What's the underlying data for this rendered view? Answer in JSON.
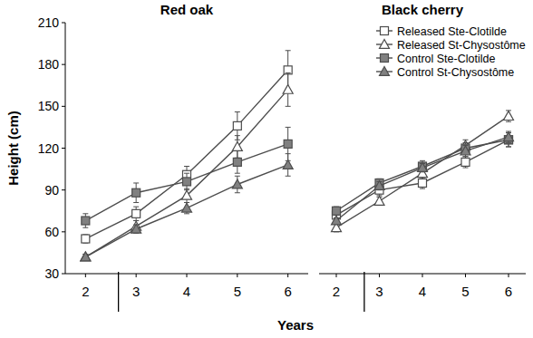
{
  "chart_data": [
    {
      "type": "line",
      "title": "Red oak",
      "ylabel": "Height (cm)",
      "xlabel": "Years",
      "x": [
        2,
        3,
        4,
        5,
        6
      ],
      "xlim": [
        1.6,
        6.4
      ],
      "xticks": [
        2,
        3,
        4,
        5,
        6
      ],
      "ylim": [
        30,
        210
      ],
      "yticks": [
        30,
        60,
        90,
        120,
        150,
        180,
        210
      ],
      "grid": false,
      "vlines": [
        2.65
      ],
      "series": [
        {
          "color": "#4d4d4d",
          "marker": "square-open",
          "values": [
            55,
            73,
            101,
            136,
            176
          ],
          "errors": [
            3,
            5,
            6,
            10,
            14
          ]
        },
        {
          "color": "#4d4d4d",
          "marker": "triangle-open",
          "values": [
            42,
            64,
            86,
            121,
            162
          ],
          "errors": [
            2,
            4,
            5,
            8,
            12
          ]
        },
        {
          "color": "#4d4d4d",
          "marker": "square",
          "values": [
            68,
            88,
            96,
            110,
            123
          ],
          "errors": [
            5,
            7,
            6,
            8,
            12
          ]
        },
        {
          "color": "#4d4d4d",
          "marker": "triangle",
          "values": [
            42,
            62,
            77,
            94,
            108
          ],
          "errors": [
            2,
            3,
            4,
            6,
            8
          ]
        }
      ]
    },
    {
      "type": "line",
      "title": "Black cherry",
      "x": [
        2,
        3,
        4,
        5,
        6
      ],
      "xlim": [
        1.6,
        6.4
      ],
      "xticks": [
        2,
        3,
        4,
        5,
        6
      ],
      "ylim": [
        30,
        210
      ],
      "tick_labels": "x",
      "grid": false,
      "vlines": [
        2.65
      ],
      "legend": "upper right",
      "series": [
        {
          "name": "Released Ste-Clotilde",
          "color": "#4d4d4d",
          "marker": "square-open",
          "values": [
            72,
            90,
            95,
            110,
            126
          ],
          "errors": [
            3,
            4,
            4,
            4,
            5
          ]
        },
        {
          "name": "Released St-Chysostôme",
          "color": "#4d4d4d",
          "marker": "triangle-open",
          "values": [
            63,
            82,
            102,
            122,
            143
          ],
          "errors": [
            3,
            3,
            4,
            4,
            4
          ]
        },
        {
          "name": "Control Ste-Clotilde",
          "color": "#4d4d4d",
          "marker": "square",
          "values": [
            75,
            95,
            107,
            120,
            126
          ],
          "errors": [
            3,
            3,
            4,
            4,
            5
          ]
        },
        {
          "name": "Control St-Chysostôme",
          "color": "#4d4d4d",
          "marker": "triangle",
          "values": [
            68,
            93,
            106,
            118,
            128
          ],
          "errors": [
            2,
            3,
            3,
            4,
            4
          ]
        }
      ]
    }
  ]
}
